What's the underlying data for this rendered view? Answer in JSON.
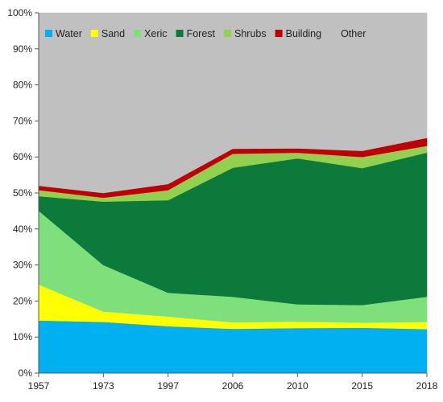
{
  "chart_data": {
    "type": "area",
    "stacked": true,
    "x": [
      "1957",
      "1973",
      "1997",
      "2006",
      "2010",
      "2015",
      "2018"
    ],
    "ylim": [
      0,
      100
    ],
    "yticks": [
      0,
      10,
      20,
      30,
      40,
      50,
      60,
      70,
      80,
      90,
      100
    ],
    "ytick_labels": [
      "0%",
      "10%",
      "20%",
      "30%",
      "40%",
      "50%",
      "60%",
      "70%",
      "80%",
      "90%",
      "100%"
    ],
    "legend_position": "top-inside",
    "grid": false,
    "series": [
      {
        "name": "Water",
        "color": "#00b0f0",
        "values": [
          14.6,
          14.2,
          13.0,
          12.3,
          12.5,
          12.6,
          12.2
        ]
      },
      {
        "name": "Sand",
        "color": "#ffff00",
        "values": [
          10.0,
          2.9,
          2.7,
          1.8,
          1.8,
          1.4,
          2.0
        ]
      },
      {
        "name": "Xeric",
        "color": "#7ee07a",
        "values": [
          20.5,
          12.9,
          6.6,
          7.1,
          4.8,
          4.9,
          7.0
        ]
      },
      {
        "name": "Forest",
        "color": "#0b7a3b",
        "values": [
          4.0,
          17.6,
          25.7,
          35.8,
          40.5,
          38.0,
          40.0
        ]
      },
      {
        "name": "Shrubs",
        "color": "#92d050",
        "values": [
          1.7,
          1.1,
          2.8,
          3.9,
          1.6,
          3.1,
          1.9
        ]
      },
      {
        "name": "Building",
        "color": "#c00000",
        "values": [
          1.2,
          1.3,
          1.7,
          1.4,
          1.2,
          1.7,
          2.2
        ]
      },
      {
        "name": "Other",
        "color": "#c0c0c0",
        "values": [
          48.0,
          50.0,
          47.5,
          37.7,
          37.6,
          38.3,
          34.7
        ]
      }
    ]
  }
}
